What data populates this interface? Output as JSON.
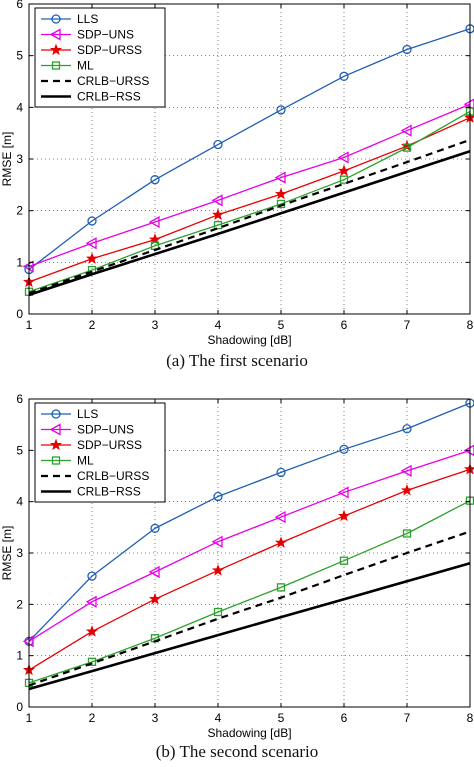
{
  "captions": [
    "(a) The first scenario",
    "(b) The second scenario"
  ],
  "chart_data": [
    {
      "type": "line",
      "x": [
        1,
        2,
        3,
        4,
        5,
        6,
        7,
        8
      ],
      "xlabel": "Shadowing [dB]",
      "ylabel": "RMSE [m]",
      "xlim": [
        1,
        8
      ],
      "ylim": [
        0,
        6
      ],
      "xticks": [
        1,
        2,
        3,
        4,
        5,
        6,
        7,
        8
      ],
      "yticks": [
        0,
        1,
        2,
        3,
        4,
        5,
        6
      ],
      "grid": true,
      "legend": "top-left",
      "series": [
        {
          "name": "LLS",
          "color": "#1f5fb4",
          "marker": "circle",
          "dash": "solid",
          "values": [
            0.86,
            1.8,
            2.6,
            3.28,
            3.95,
            4.6,
            5.12,
            5.52
          ]
        },
        {
          "name": "SDP−UNS",
          "color": "#e600e6",
          "marker": "triangle-left",
          "dash": "solid",
          "values": [
            0.92,
            1.37,
            1.78,
            2.2,
            2.64,
            3.03,
            3.55,
            4.06
          ]
        },
        {
          "name": "SDP−URSS",
          "color": "#e60000",
          "marker": "star",
          "dash": "solid",
          "values": [
            0.62,
            1.07,
            1.44,
            1.92,
            2.32,
            2.77,
            3.25,
            3.8
          ]
        },
        {
          "name": "ML",
          "color": "#2ca02c",
          "marker": "square",
          "dash": "solid",
          "values": [
            0.43,
            0.85,
            1.32,
            1.72,
            2.13,
            2.6,
            3.22,
            3.92
          ]
        },
        {
          "name": "CRLB−URSS",
          "color": "#000000",
          "marker": "none",
          "dash": "dashed",
          "values": [
            0.4,
            0.82,
            1.24,
            1.66,
            2.1,
            2.52,
            2.94,
            3.37
          ]
        },
        {
          "name": "CRLB−RSS",
          "color": "#000000",
          "marker": "none",
          "dash": "solid-thick",
          "values": [
            0.37,
            0.77,
            1.16,
            1.55,
            1.95,
            2.35,
            2.75,
            3.15
          ]
        }
      ]
    },
    {
      "type": "line",
      "x": [
        1,
        2,
        3,
        4,
        5,
        6,
        7,
        8
      ],
      "xlabel": "Shadowing [dB]",
      "ylabel": "RMSE [m]",
      "xlim": [
        1,
        8
      ],
      "ylim": [
        0,
        6
      ],
      "xticks": [
        1,
        2,
        3,
        4,
        5,
        6,
        7,
        8
      ],
      "yticks": [
        0,
        1,
        2,
        3,
        4,
        5,
        6
      ],
      "grid": true,
      "legend": "top-left",
      "series": [
        {
          "name": "LLS",
          "color": "#1f5fb4",
          "marker": "circle",
          "dash": "solid",
          "values": [
            1.28,
            2.55,
            3.48,
            4.1,
            4.57,
            5.02,
            5.42,
            5.92
          ]
        },
        {
          "name": "SDP−UNS",
          "color": "#e600e6",
          "marker": "triangle-left",
          "dash": "solid",
          "values": [
            1.28,
            2.05,
            2.63,
            3.22,
            3.7,
            4.18,
            4.6,
            5.0
          ]
        },
        {
          "name": "SDP−URSS",
          "color": "#e60000",
          "marker": "star",
          "dash": "solid",
          "values": [
            0.72,
            1.47,
            2.1,
            2.66,
            3.2,
            3.72,
            4.22,
            4.63
          ]
        },
        {
          "name": "ML",
          "color": "#2ca02c",
          "marker": "square",
          "dash": "solid",
          "values": [
            0.47,
            0.88,
            1.34,
            1.85,
            2.33,
            2.85,
            3.38,
            4.02
          ]
        },
        {
          "name": "CRLB−URSS",
          "color": "#000000",
          "marker": "none",
          "dash": "dashed",
          "values": [
            0.42,
            0.85,
            1.28,
            1.72,
            2.13,
            2.57,
            3.0,
            3.42
          ]
        },
        {
          "name": "CRLB−RSS",
          "color": "#000000",
          "marker": "none",
          "dash": "solid-thick",
          "values": [
            0.35,
            0.7,
            1.05,
            1.4,
            1.75,
            2.1,
            2.45,
            2.8
          ]
        }
      ]
    }
  ]
}
